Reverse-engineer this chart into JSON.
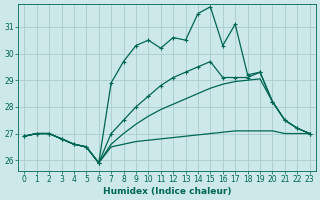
{
  "xlabel": "Humidex (Indice chaleur)",
  "xlim": [
    -0.5,
    23.5
  ],
  "ylim": [
    25.6,
    31.85
  ],
  "yticks": [
    26,
    27,
    28,
    29,
    30,
    31
  ],
  "xticks": [
    0,
    1,
    2,
    3,
    4,
    5,
    6,
    7,
    8,
    9,
    10,
    11,
    12,
    13,
    14,
    15,
    16,
    17,
    18,
    19,
    20,
    21,
    22,
    23
  ],
  "background_color": "#cce8e8",
  "grid_color": "#aacccc",
  "line_color": "#006655",
  "lines": [
    {
      "x": [
        0,
        1,
        2,
        3,
        4,
        5,
        6,
        7,
        8,
        9,
        10,
        11,
        12,
        13,
        14,
        15,
        16,
        17,
        18,
        19,
        20,
        21,
        22,
        23
      ],
      "y": [
        26.9,
        27.0,
        27.0,
        26.8,
        26.6,
        26.5,
        25.9,
        26.5,
        26.6,
        26.7,
        26.75,
        26.8,
        26.85,
        26.9,
        26.95,
        27.0,
        27.05,
        27.1,
        27.1,
        27.1,
        27.1,
        27.0,
        27.0,
        27.0
      ],
      "marker": false,
      "linewidth": 0.9
    },
    {
      "x": [
        0,
        1,
        2,
        3,
        4,
        5,
        6,
        7,
        8,
        9,
        10,
        11,
        12,
        13,
        14,
        15,
        16,
        17,
        18,
        19,
        20,
        21,
        22,
        23
      ],
      "y": [
        26.9,
        27.0,
        27.0,
        26.8,
        26.6,
        26.5,
        25.9,
        26.6,
        27.0,
        27.35,
        27.65,
        27.9,
        28.1,
        28.3,
        28.5,
        28.7,
        28.85,
        28.95,
        29.0,
        29.05,
        28.2,
        27.5,
        27.2,
        27.0
      ],
      "marker": false,
      "linewidth": 0.9
    },
    {
      "x": [
        0,
        1,
        2,
        3,
        4,
        5,
        6,
        7,
        8,
        9,
        10,
        11,
        12,
        13,
        14,
        15,
        16,
        17,
        18,
        19,
        20,
        21,
        22,
        23
      ],
      "y": [
        26.9,
        27.0,
        27.0,
        26.8,
        26.6,
        26.5,
        25.9,
        27.0,
        27.5,
        28.0,
        28.4,
        28.8,
        29.1,
        29.3,
        29.5,
        29.7,
        29.1,
        29.1,
        29.1,
        29.3,
        28.2,
        27.5,
        27.2,
        27.0
      ],
      "marker": true,
      "linewidth": 0.9
    },
    {
      "x": [
        0,
        1,
        2,
        3,
        4,
        5,
        6,
        7,
        8,
        9,
        10,
        11,
        12,
        13,
        14,
        15,
        16,
        17,
        18,
        19,
        20,
        21,
        22,
        23
      ],
      "y": [
        26.9,
        27.0,
        27.0,
        26.8,
        26.6,
        26.5,
        25.9,
        28.9,
        29.7,
        30.3,
        30.5,
        30.2,
        30.6,
        30.5,
        31.5,
        31.75,
        30.3,
        31.1,
        29.2,
        29.3,
        28.2,
        27.5,
        27.2,
        27.0
      ],
      "marker": true,
      "linewidth": 0.9
    }
  ]
}
